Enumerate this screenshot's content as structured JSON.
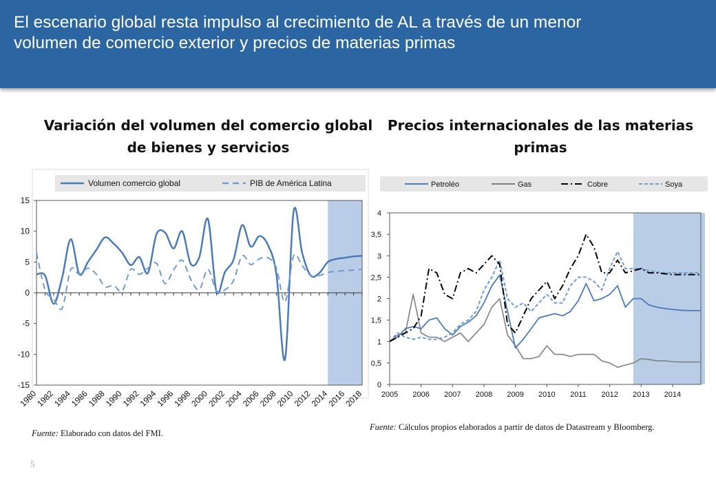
{
  "header": {
    "title_line1": "El escenario global resta impulso al crecimiento de AL a través de un menor",
    "title_line2": "volumen de comercio exterior y precios de materias primas"
  },
  "colors": {
    "banner": "#2b66a3",
    "series_main": "#4a7ab8",
    "series_dashed": "#6f9bd3",
    "forecast_shade": "#b9cde6",
    "gas": "#7f7f7f",
    "copper": "#000000"
  },
  "page_number": "5",
  "chart_data": [
    {
      "type": "line",
      "title_line1": "Variación del volumen del comercio global",
      "title_line2": "de bienes y servicios",
      "xlabel": "",
      "ylabel": "",
      "ylim": [
        -15,
        15
      ],
      "xlim": [
        1980,
        2018
      ],
      "y_ticks": [
        "15",
        "10",
        "5",
        "0",
        "-5",
        "-10",
        "-15"
      ],
      "x_ticks": [
        "1980",
        "1982",
        "1984",
        "1986",
        "1988",
        "1990",
        "1992",
        "1994",
        "1996",
        "1998",
        "2000",
        "2002",
        "2004",
        "2006",
        "2008",
        "2010",
        "2012",
        "2014",
        "2016",
        "2018"
      ],
      "forecast_region": [
        2014,
        2018
      ],
      "legend_position": "top",
      "source": "Elaborado con datos del FMI.",
      "source_label": "Fuente:",
      "series": [
        {
          "name": "Volumen comercio global",
          "style": "solid",
          "x": [
            1980,
            1981,
            1982,
            1983,
            1984,
            1985,
            1986,
            1987,
            1988,
            1989,
            1990,
            1991,
            1992,
            1993,
            1994,
            1995,
            1996,
            1997,
            1998,
            1999,
            2000,
            2001,
            2002,
            2003,
            2004,
            2005,
            2006,
            2007,
            2008,
            2009,
            2010,
            2011,
            2012,
            2013,
            2014,
            2015,
            2016,
            2017,
            2018
          ],
          "values": [
            3.0,
            2.8,
            -1.8,
            2.5,
            8.7,
            3.0,
            5.0,
            7.0,
            9.0,
            8.0,
            6.5,
            4.5,
            5.8,
            3.2,
            9.5,
            9.8,
            7.2,
            10.0,
            4.7,
            5.8,
            12.0,
            0.2,
            3.4,
            5.4,
            11.0,
            7.5,
            9.2,
            7.8,
            3.0,
            -10.8,
            13.2,
            6.5,
            2.8,
            3.2,
            5.0,
            5.5,
            5.7,
            5.9,
            6.0
          ]
        },
        {
          "name": "PIB de América Latina",
          "style": "dashed",
          "x": [
            1980,
            1981,
            1982,
            1983,
            1984,
            1985,
            1986,
            1987,
            1988,
            1989,
            1990,
            1991,
            1992,
            1993,
            1994,
            1995,
            1996,
            1997,
            1998,
            1999,
            2000,
            2001,
            2002,
            2003,
            2004,
            2005,
            2006,
            2007,
            2008,
            2009,
            2010,
            2011,
            2012,
            2013,
            2014,
            2015,
            2016,
            2017,
            2018
          ],
          "values": [
            6.5,
            0.5,
            -1.0,
            -2.5,
            3.8,
            3.0,
            4.0,
            3.0,
            1.0,
            1.2,
            0.3,
            3.8,
            3.0,
            4.0,
            4.8,
            1.5,
            3.7,
            5.3,
            2.2,
            0.5,
            3.8,
            0.3,
            0.5,
            2.0,
            6.0,
            4.6,
            5.5,
            5.7,
            4.0,
            -1.5,
            6.0,
            4.4,
            2.8,
            2.8,
            3.3,
            3.5,
            3.6,
            3.7,
            3.8
          ]
        }
      ]
    },
    {
      "type": "line",
      "title_line1": "Precios internacionales de las materias",
      "title_line2": "primas",
      "xlabel": "",
      "ylabel": "",
      "ylim": [
        0,
        4
      ],
      "xlim": [
        2005,
        2014.9
      ],
      "y_ticks": [
        "4",
        "3,5",
        "3",
        "2,5",
        "2",
        "1,5",
        "1",
        "0,5",
        "0"
      ],
      "x_ticks": [
        "2005",
        "2006",
        "2007",
        "2008",
        "2009",
        "2010",
        "2011",
        "2012",
        "2013",
        "2014"
      ],
      "forecast_region": [
        2012.75,
        2014.9
      ],
      "legend_position": "top",
      "source": "Cálculos propios elaborados a partir de datos de Datastream y Bloomberg.",
      "source_label": "Fuente:",
      "series": [
        {
          "name": "Petroléo",
          "style": "solid",
          "x": [
            2005.0,
            2005.25,
            2005.5,
            2005.75,
            2006.0,
            2006.25,
            2006.5,
            2006.75,
            2007.0,
            2007.25,
            2007.5,
            2007.75,
            2008.0,
            2008.25,
            2008.5,
            2008.75,
            2009.0,
            2009.25,
            2009.5,
            2009.75,
            2010.0,
            2010.25,
            2010.5,
            2010.75,
            2011.0,
            2011.25,
            2011.5,
            2011.75,
            2012.0,
            2012.25,
            2012.5,
            2012.75,
            2013.0,
            2013.25,
            2013.5,
            2013.75,
            2014.0,
            2014.25,
            2014.5,
            2014.75,
            2014.9
          ],
          "values": [
            1.0,
            1.1,
            1.3,
            1.35,
            1.3,
            1.5,
            1.55,
            1.3,
            1.15,
            1.35,
            1.45,
            1.6,
            1.9,
            2.3,
            2.55,
            1.7,
            0.85,
            1.05,
            1.3,
            1.55,
            1.6,
            1.65,
            1.6,
            1.7,
            1.95,
            2.35,
            1.95,
            2.0,
            2.1,
            2.3,
            1.8,
            2.0,
            2.0,
            1.85,
            1.8,
            1.77,
            1.75,
            1.73,
            1.72,
            1.72,
            1.72
          ]
        },
        {
          "name": "Gas",
          "style": "solid",
          "x": [
            2005.0,
            2005.25,
            2005.5,
            2005.75,
            2006.0,
            2006.25,
            2006.5,
            2006.75,
            2007.0,
            2007.25,
            2007.5,
            2007.75,
            2008.0,
            2008.25,
            2008.5,
            2008.75,
            2009.0,
            2009.25,
            2009.5,
            2009.75,
            2010.0,
            2010.25,
            2010.5,
            2010.75,
            2011.0,
            2011.25,
            2011.5,
            2011.75,
            2012.0,
            2012.25,
            2012.5,
            2012.75,
            2013.0,
            2013.25,
            2013.5,
            2013.75,
            2014.0,
            2014.25,
            2014.5,
            2014.75,
            2014.9
          ],
          "values": [
            1.0,
            1.15,
            1.2,
            2.1,
            1.2,
            1.1,
            1.1,
            1.0,
            1.1,
            1.2,
            1.0,
            1.2,
            1.4,
            1.8,
            2.0,
            1.15,
            0.9,
            0.6,
            0.6,
            0.65,
            0.9,
            0.7,
            0.7,
            0.65,
            0.7,
            0.7,
            0.7,
            0.55,
            0.5,
            0.4,
            0.45,
            0.5,
            0.6,
            0.58,
            0.55,
            0.55,
            0.53,
            0.52,
            0.52,
            0.52,
            0.52
          ]
        },
        {
          "name": "Cobre",
          "style": "dashdot",
          "x": [
            2005.0,
            2005.25,
            2005.5,
            2005.75,
            2006.0,
            2006.25,
            2006.5,
            2006.75,
            2007.0,
            2007.25,
            2007.5,
            2007.75,
            2008.0,
            2008.25,
            2008.5,
            2008.75,
            2009.0,
            2009.25,
            2009.5,
            2009.75,
            2010.0,
            2010.25,
            2010.5,
            2010.75,
            2011.0,
            2011.25,
            2011.5,
            2011.75,
            2012.0,
            2012.25,
            2012.5,
            2012.75,
            2013.0,
            2013.25,
            2013.5,
            2013.75,
            2014.0,
            2014.25,
            2014.5,
            2014.75,
            2014.9
          ],
          "values": [
            1.0,
            1.1,
            1.2,
            1.3,
            1.6,
            2.7,
            2.6,
            2.1,
            2.0,
            2.6,
            2.7,
            2.6,
            2.8,
            3.0,
            2.8,
            1.4,
            1.2,
            1.6,
            2.0,
            2.2,
            2.4,
            2.0,
            2.3,
            2.7,
            3.0,
            3.5,
            3.2,
            2.6,
            2.6,
            2.9,
            2.6,
            2.65,
            2.7,
            2.6,
            2.6,
            2.58,
            2.56,
            2.56,
            2.56,
            2.56,
            2.56
          ]
        },
        {
          "name": "Soya",
          "style": "dashed",
          "x": [
            2005.0,
            2005.25,
            2005.5,
            2005.75,
            2006.0,
            2006.25,
            2006.5,
            2006.75,
            2007.0,
            2007.25,
            2007.5,
            2007.75,
            2008.0,
            2008.25,
            2008.5,
            2008.75,
            2009.0,
            2009.25,
            2009.5,
            2009.75,
            2010.0,
            2010.25,
            2010.5,
            2010.75,
            2011.0,
            2011.25,
            2011.5,
            2011.75,
            2012.0,
            2012.25,
            2012.5,
            2012.75,
            2013.0,
            2013.25,
            2013.5,
            2013.75,
            2014.0,
            2014.25,
            2014.5,
            2014.75,
            2014.9
          ],
          "values": [
            1.0,
            1.2,
            1.1,
            1.05,
            1.1,
            1.05,
            1.05,
            1.1,
            1.2,
            1.4,
            1.5,
            1.7,
            2.2,
            2.5,
            2.9,
            2.0,
            1.8,
            1.9,
            1.7,
            1.9,
            2.1,
            1.9,
            1.9,
            2.3,
            2.5,
            2.5,
            2.4,
            2.2,
            2.7,
            3.1,
            2.7,
            2.7,
            2.7,
            2.65,
            2.62,
            2.6,
            2.6,
            2.6,
            2.6,
            2.6,
            2.6
          ]
        }
      ]
    }
  ]
}
